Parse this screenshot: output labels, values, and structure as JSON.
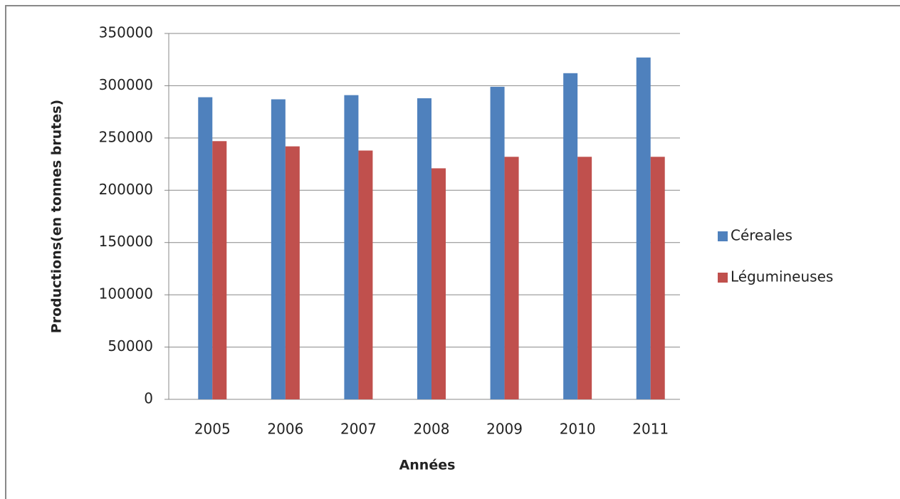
{
  "chart_data": {
    "type": "bar",
    "xlabel": "Années",
    "ylabel": "Productions(en tonnes brutes)",
    "categories": [
      "2005",
      "2006",
      "2007",
      "2008",
      "2009",
      "2010",
      "2011"
    ],
    "series": [
      {
        "name": "Céreales",
        "color": "#4f81bd",
        "values": [
          289000,
          287000,
          291000,
          288000,
          299000,
          312000,
          327000
        ]
      },
      {
        "name": "Légumineuses",
        "color": "#c0504d",
        "values": [
          247000,
          242000,
          238000,
          221000,
          232000,
          232000,
          232000
        ]
      }
    ],
    "ylim": [
      0,
      350000
    ],
    "yticks": [
      0,
      50000,
      100000,
      150000,
      200000,
      250000,
      300000,
      350000
    ],
    "grid": true,
    "legend": "right"
  }
}
